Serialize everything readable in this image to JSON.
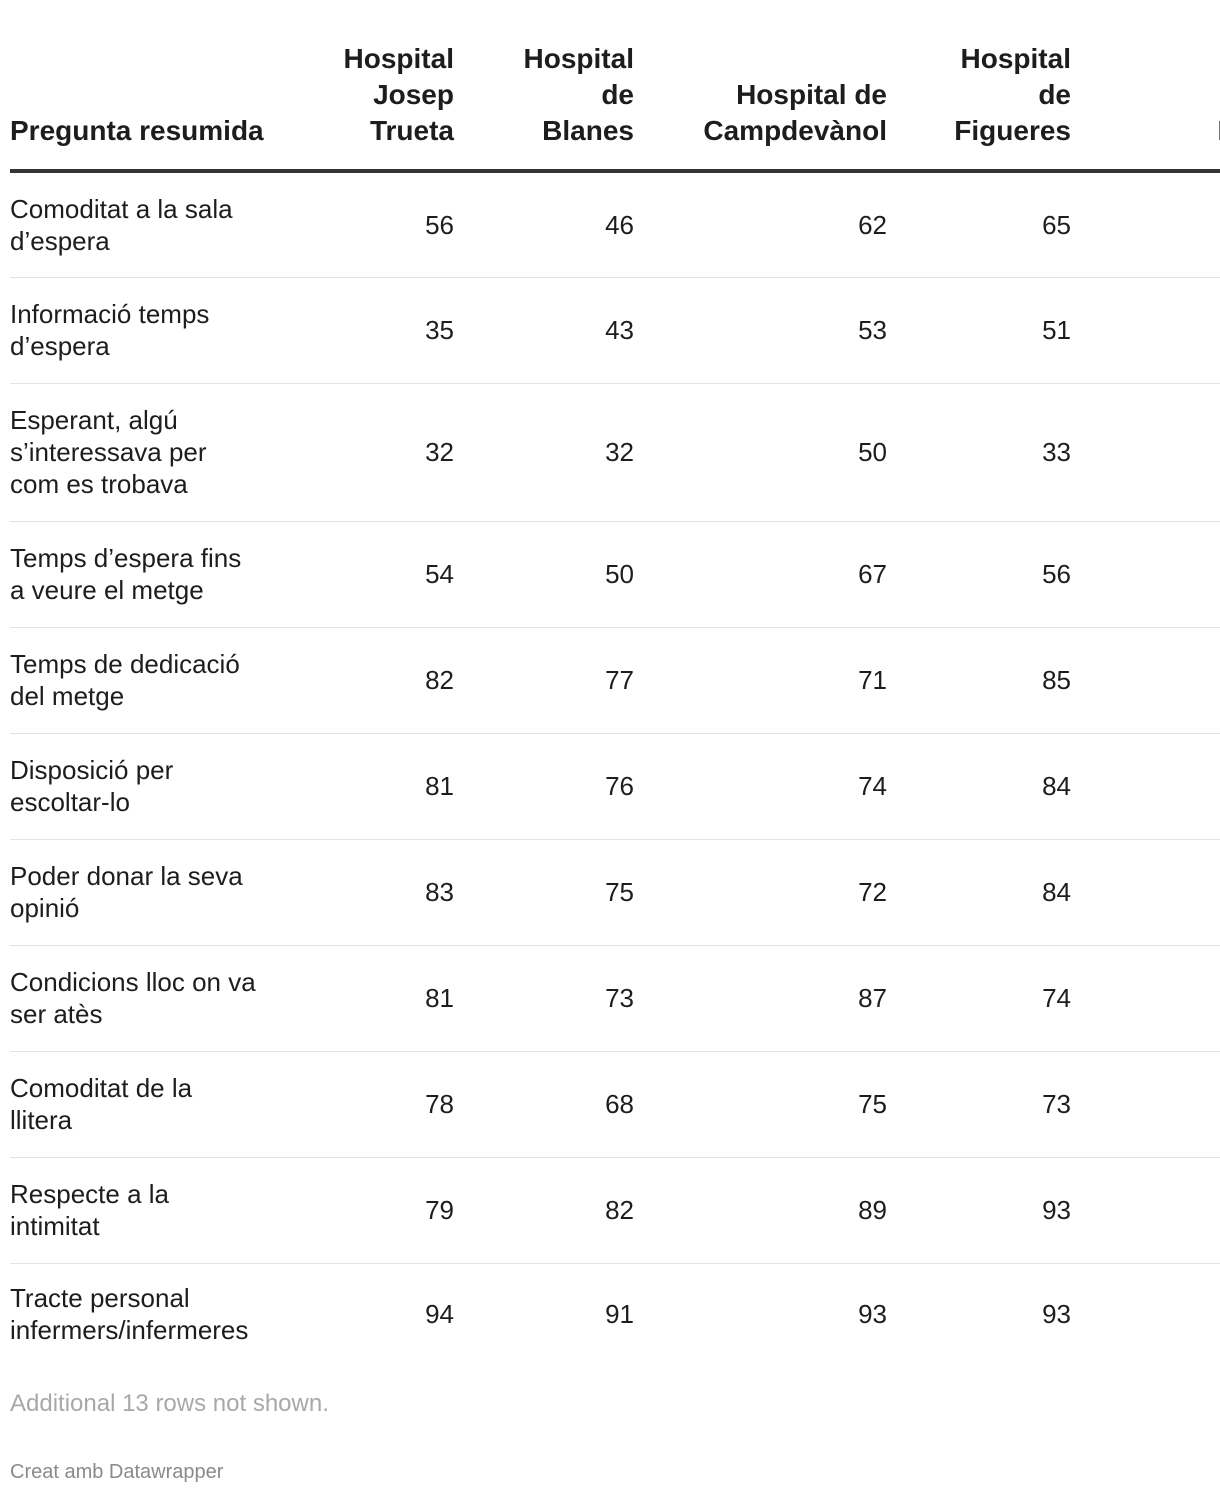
{
  "chart_data": {
    "type": "table",
    "columns": [
      "Pregunta resumida",
      "Hospital Josep Trueta",
      "Hospital de Blanes",
      "Hospital de Campdevànol",
      "Hospital de Figueres",
      "Hospital de Palamós"
    ],
    "header_lines": [
      [
        "Pregunta resumida"
      ],
      [
        "Hospital",
        "Josep",
        "Trueta"
      ],
      [
        "Hospital",
        "de",
        "Blanes"
      ],
      [
        "Hospital de",
        "Campdevànol"
      ],
      [
        "Hospital",
        "de",
        "Figueres"
      ],
      [
        "Hosp",
        "",
        "Palam"
      ]
    ],
    "rows": [
      {
        "question": [
          "Comoditat a la sala",
          "d’espera"
        ],
        "values": [
          "56",
          "46",
          "62",
          "65",
          ""
        ]
      },
      {
        "question": [
          "Informació temps",
          "d’espera"
        ],
        "values": [
          "35",
          "43",
          "53",
          "51",
          ""
        ]
      },
      {
        "question": [
          "Esperant, algú",
          "s’interessava per",
          "com es trobava"
        ],
        "values": [
          "32",
          "32",
          "50",
          "33",
          ""
        ]
      },
      {
        "question": [
          "Temps d’espera fins",
          "a veure el metge"
        ],
        "values": [
          "54",
          "50",
          "67",
          "56",
          ""
        ]
      },
      {
        "question": [
          "Temps de dedicació",
          "del metge"
        ],
        "values": [
          "82",
          "77",
          "71",
          "85",
          ""
        ]
      },
      {
        "question": [
          "Disposició per",
          "escoltar-lo"
        ],
        "values": [
          "81",
          "76",
          "74",
          "84",
          ""
        ]
      },
      {
        "question": [
          "Poder donar la seva",
          "opinió"
        ],
        "values": [
          "83",
          "75",
          "72",
          "84",
          ""
        ]
      },
      {
        "question": [
          "Condicions lloc on va",
          "ser atès"
        ],
        "values": [
          "81",
          "73",
          "87",
          "74",
          ""
        ]
      },
      {
        "question": [
          "Comoditat de la",
          "llitera"
        ],
        "values": [
          "78",
          "68",
          "75",
          "73",
          ""
        ]
      },
      {
        "question": [
          "Respecte a la",
          "intimitat"
        ],
        "values": [
          "79",
          "82",
          "89",
          "93",
          ""
        ]
      },
      {
        "question": [
          "Tracte personal",
          "infermers/infermeres"
        ],
        "values": [
          "94",
          "91",
          "93",
          "93",
          ""
        ]
      }
    ],
    "notes": "Additional 13 rows not shown.",
    "credit": "Creat amb Datawrapper"
  }
}
